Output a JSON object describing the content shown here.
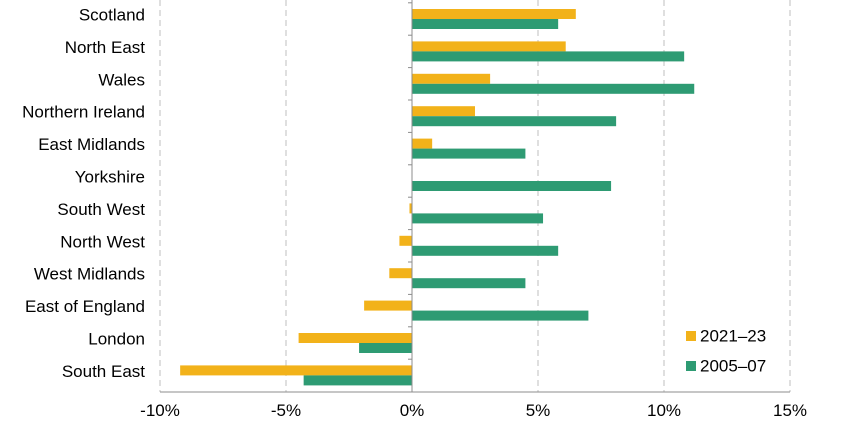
{
  "chart_data": {
    "type": "bar",
    "orientation": "horizontal",
    "categories": [
      "Scotland",
      "North East",
      "Wales",
      "Northern Ireland",
      "East Midlands",
      "Yorkshire",
      "South West",
      "North West",
      "West Midlands",
      "East of England",
      "London",
      "South East"
    ],
    "series": [
      {
        "name": "2021–23",
        "color": "#F2B21A",
        "values": [
          6.5,
          6.1,
          3.1,
          2.5,
          0.8,
          0.0,
          -0.1,
          -0.5,
          -0.9,
          -1.9,
          -4.5,
          -9.2
        ]
      },
      {
        "name": "2005–07",
        "color": "#2E9B73",
        "values": [
          5.8,
          10.8,
          11.2,
          8.1,
          4.5,
          7.9,
          5.2,
          5.8,
          4.5,
          7.0,
          -2.1,
          -4.3
        ]
      }
    ],
    "xlim": [
      -10,
      15
    ],
    "xticks": [
      -10,
      -5,
      0,
      5,
      10,
      15
    ],
    "xtick_labels": [
      "-10%",
      "-5%",
      "0%",
      "5%",
      "10%",
      "15%"
    ],
    "grid": "vertical dashed",
    "legend_position": "bottom-right",
    "title": "",
    "xlabel": "",
    "ylabel": ""
  }
}
